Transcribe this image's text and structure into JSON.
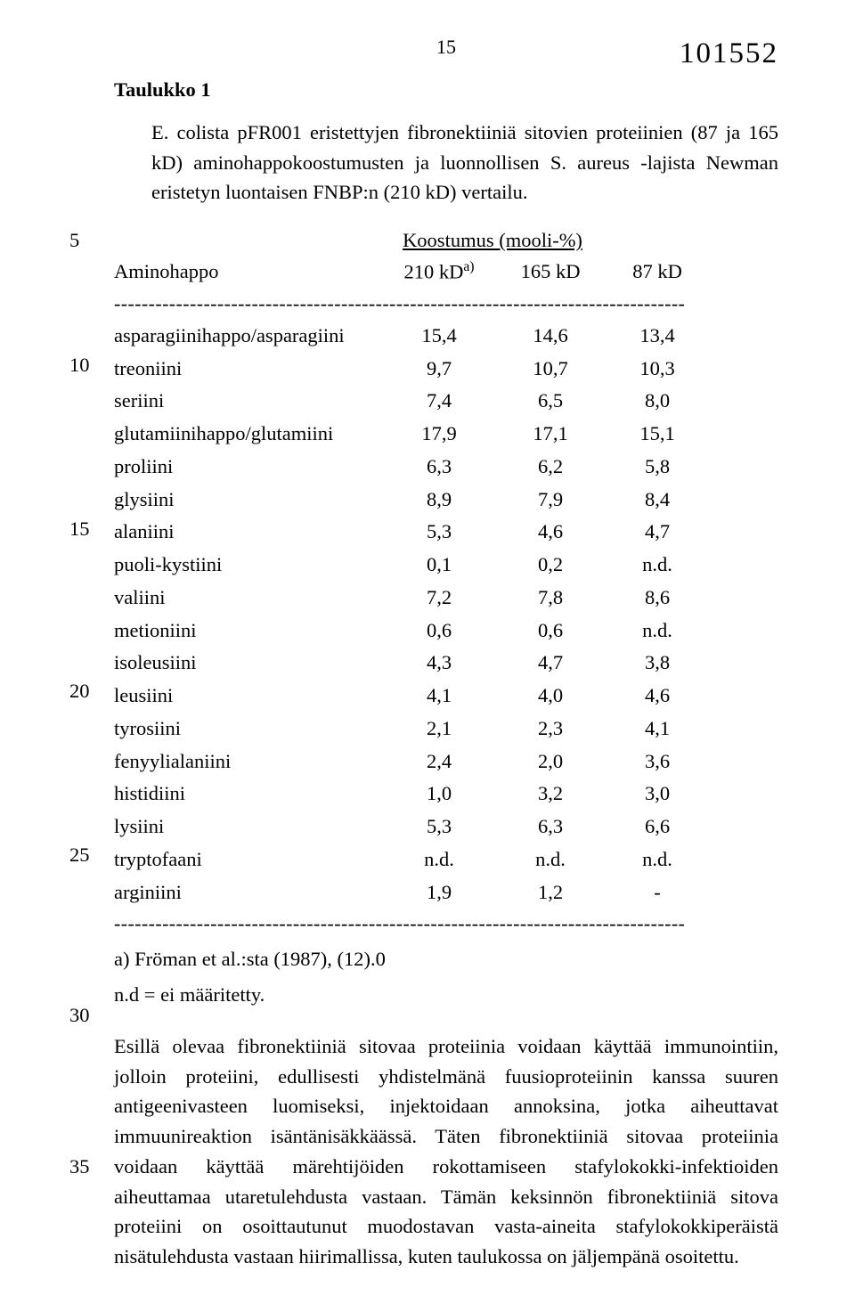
{
  "header": {
    "page_number": "15",
    "doc_id": "101552"
  },
  "table_title": "Taulukko 1",
  "intro": "E. colista pFR001 eristettyjen fibronektiiniä sitovien proteiinien (87 ja 165 kD) aminohappokoostumusten ja luonnollisen S. aureus -lajista Newman eristetyn luontaisen FNBP:n (210 kD) vertailu.",
  "composition_label": "Koostumus (mooli-%)",
  "col_headers": {
    "name": "Aminohappo",
    "c1": "210 kD",
    "c1_sup": "a)",
    "c2": "165 kD",
    "c3": "87 kD"
  },
  "rows": [
    {
      "name": "asparagiinihappo/asparagiini",
      "c1": "15,4",
      "c2": "14,6",
      "c3": "13,4"
    },
    {
      "name": "treoniini",
      "c1": "9,7",
      "c2": "10,7",
      "c3": "10,3"
    },
    {
      "name": "seriini",
      "c1": "7,4",
      "c2": "6,5",
      "c3": "8,0"
    },
    {
      "name": "glutamiinihappo/glutamiini",
      "c1": "17,9",
      "c2": "17,1",
      "c3": "15,1"
    },
    {
      "name": "proliini",
      "c1": "6,3",
      "c2": "6,2",
      "c3": "5,8"
    },
    {
      "name": "glysiini",
      "c1": "8,9",
      "c2": "7,9",
      "c3": "8,4"
    },
    {
      "name": "alaniini",
      "c1": "5,3",
      "c2": "4,6",
      "c3": "4,7"
    },
    {
      "name": "puoli-kystiini",
      "c1": "0,1",
      "c2": "0,2",
      "c3": "n.d."
    },
    {
      "name": "valiini",
      "c1": "7,2",
      "c2": "7,8",
      "c3": "8,6"
    },
    {
      "name": "metioniini",
      "c1": "0,6",
      "c2": "0,6",
      "c3": "n.d."
    },
    {
      "name": "isoleusiini",
      "c1": "4,3",
      "c2": "4,7",
      "c3": "3,8"
    },
    {
      "name": "leusiini",
      "c1": "4,1",
      "c2": "4,0",
      "c3": "4,6"
    },
    {
      "name": "tyrosiini",
      "c1": "2,1",
      "c2": "2,3",
      "c3": "4,1"
    },
    {
      "name": "fenyylialaniini",
      "c1": "2,4",
      "c2": "2,0",
      "c3": "3,6"
    },
    {
      "name": "histidiini",
      "c1": "1,0",
      "c2": "3,2",
      "c3": "3,0"
    },
    {
      "name": "lysiini",
      "c1": "5,3",
      "c2": "6,3",
      "c3": "6,6"
    },
    {
      "name": "tryptofaani",
      "c1": "n.d.",
      "c2": "n.d.",
      "c3": "n.d."
    },
    {
      "name": "arginiini",
      "c1": "1,9",
      "c2": "1,2",
      "c3": "-"
    }
  ],
  "footnote_a": "a) Fröman et al.:sta (1987), (12).0",
  "footnote_b": "n.d = ei määritetty.",
  "main_paragraph": "Esillä olevaa fibronektiiniä sitovaa proteiinia voidaan käyttää immunointiin, jolloin proteiini, edullisesti yhdistelmänä fuusioproteiinin kanssa suuren antigeenivasteen luomiseksi, injektoidaan annoksina, jotka aiheuttavat immuunireaktion isäntänisäkkäässä. Täten fibronektiiniä sitovaa proteiinia voidaan käyttää märehtijöiden rokottamiseen stafylokokki-infektioiden aiheuttamaa utaretulehdusta vastaan. Tämän keksinnön fibronektiiniä sitova proteiini on osoittautunut muodostavan vasta-aineita stafylokokkiperäistä nisätulehdusta vastaan hiirimallissa, kuten taulukossa on jäljempänä osoitettu.",
  "line_markers": {
    "m5": "5",
    "m10": "10",
    "m15": "15",
    "m20": "20",
    "m25": "25",
    "m30": "30",
    "m35": "35"
  },
  "dashes": "-----------------------------------------------------------------------------------"
}
